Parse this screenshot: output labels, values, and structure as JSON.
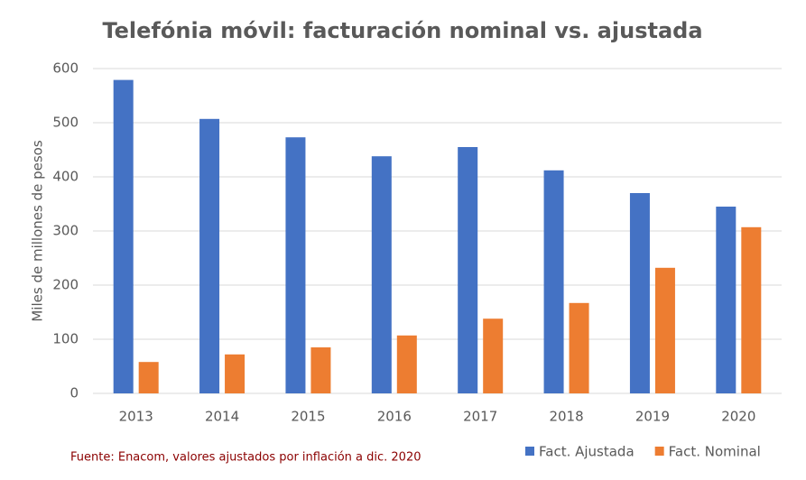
{
  "chart_data": {
    "type": "bar",
    "title": "Telefónia móvil: facturación nominal vs. ajustada",
    "y_label": "Miles de millones de pesos",
    "note": "Fuente: Enacom, valores ajustados por inflación a dic. 2020",
    "categories": [
      "2013",
      "2014",
      "2015",
      "2016",
      "2017",
      "2018",
      "2019",
      "2020"
    ],
    "series": [
      {
        "name": "Fact. Ajustada",
        "color": "#4472c4",
        "values": [
          579,
          507,
          473,
          438,
          455,
          412,
          370,
          345
        ]
      },
      {
        "name": "Fact. Nominal",
        "color": "#ed7d31",
        "values": [
          58,
          72,
          85,
          107,
          138,
          167,
          232,
          307
        ]
      }
    ],
    "ylim": [
      0,
      600
    ],
    "yticks": [
      0,
      100,
      200,
      300,
      400,
      500,
      600
    ],
    "grid": true,
    "legend": "bottom-right"
  }
}
